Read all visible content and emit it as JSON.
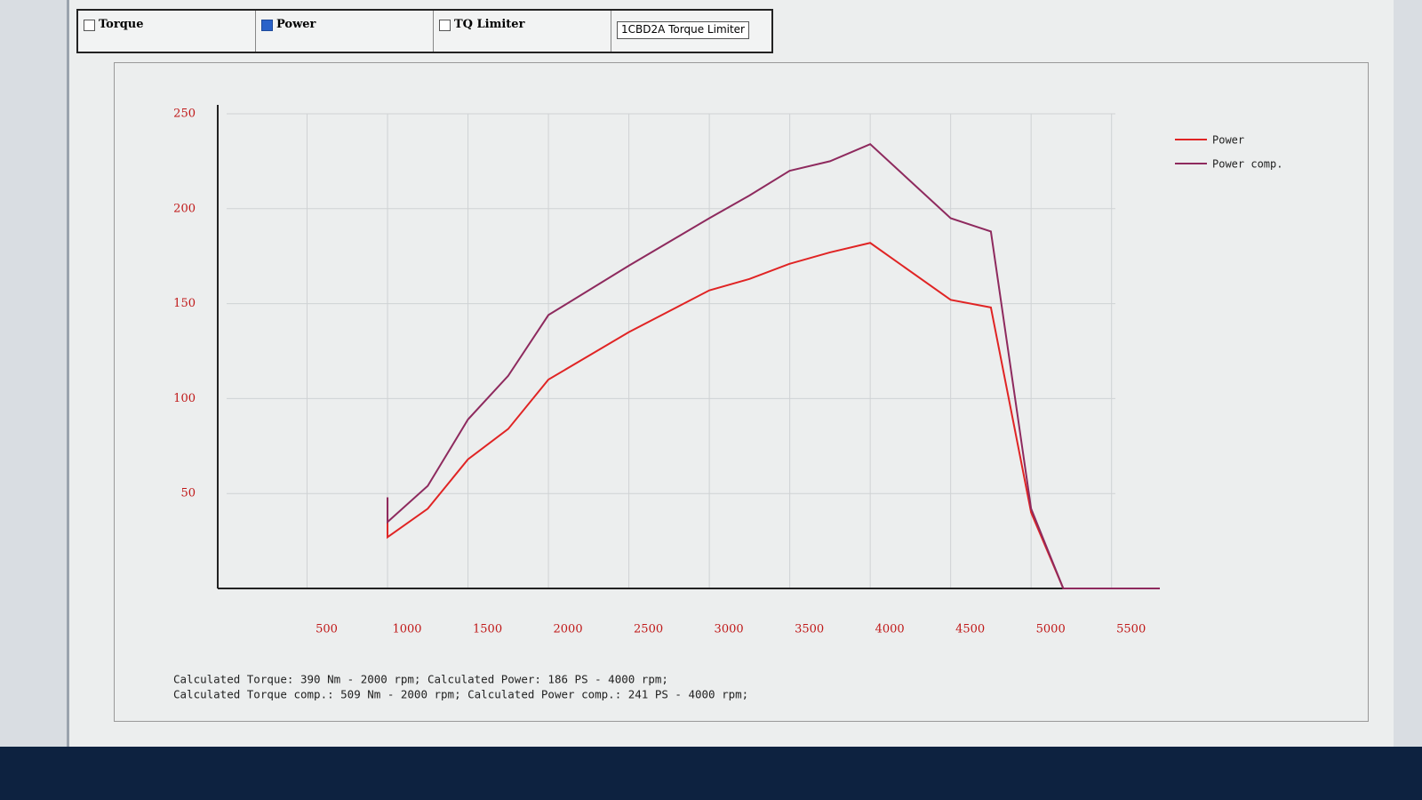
{
  "controls": [
    {
      "label": "Torque",
      "checked": false
    },
    {
      "label": "Power",
      "checked": true
    },
    {
      "label": "TQ Limiter",
      "checked": false
    }
  ],
  "dropdown": {
    "selected": "1CBD2A Torque Limiter"
  },
  "chart_data": {
    "type": "line",
    "x": [
      1000,
      1000,
      1250,
      1500,
      1750,
      2000,
      2500,
      3000,
      3250,
      3500,
      3750,
      4000,
      4500,
      4750,
      5000,
      5200,
      5800
    ],
    "series": [
      {
        "name": "Power",
        "color": "#e02424",
        "values": [
          48,
          27,
          42,
          68,
          84,
          110,
          135,
          157,
          163,
          171,
          177,
          182,
          152,
          148,
          40,
          0,
          0
        ]
      },
      {
        "name": "Power comp.",
        "color": "#8e2a5e",
        "values": [
          48,
          35,
          54,
          89,
          112,
          144,
          170,
          195,
          207,
          220,
          225,
          234,
          195,
          188,
          42,
          0,
          0
        ]
      }
    ],
    "xlim": [
      0,
      5800
    ],
    "xticks": [
      500,
      1000,
      1500,
      2000,
      2500,
      3000,
      3500,
      4000,
      4500,
      5000,
      5500
    ],
    "ylim": [
      0,
      250
    ],
    "yticks": [
      50,
      100,
      150,
      200,
      250
    ],
    "grid": true,
    "legend": "top-right"
  },
  "footer_lines": [
    "Calculated Torque: 390 Nm - 2000 rpm; Calculated Power: 186 PS - 4000 rpm;",
    "Calculated Torque comp.: 509 Nm - 2000 rpm; Calculated Power comp.: 241 PS - 4000 rpm;"
  ]
}
